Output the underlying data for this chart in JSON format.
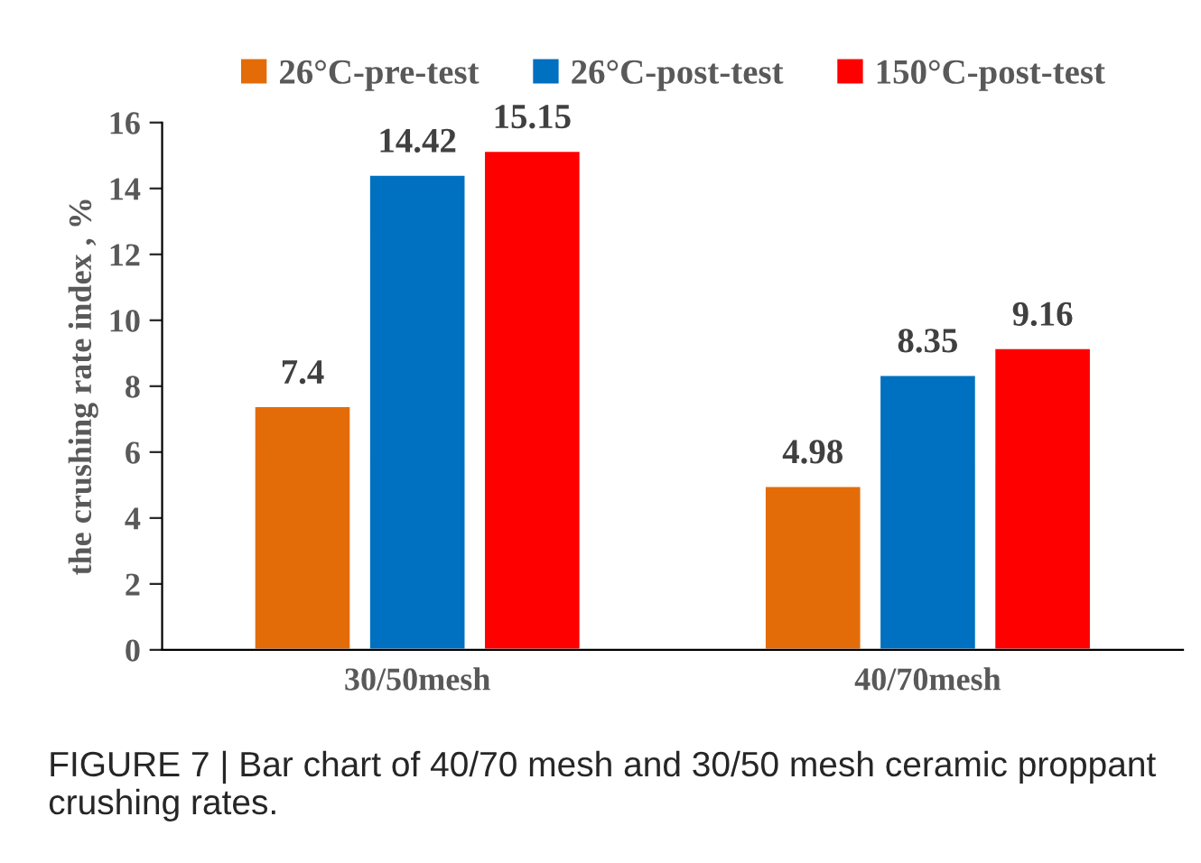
{
  "chart_data": {
    "type": "bar",
    "categories": [
      "30/50mesh",
      "40/70mesh"
    ],
    "series": [
      {
        "name": "26°C-pre-test",
        "color": "#e36c09",
        "values": [
          7.4,
          4.98
        ]
      },
      {
        "name": "26°C-post-test",
        "color": "#0070c0",
        "values": [
          14.42,
          8.35
        ]
      },
      {
        "name": "150°C-post-test",
        "color": "#ff0000",
        "values": [
          15.15,
          9.16
        ]
      }
    ],
    "ylabel": "the crushing rate index , %",
    "ylim": [
      0,
      16
    ],
    "yticks": [
      0,
      2,
      4,
      6,
      8,
      10,
      12,
      14,
      16
    ],
    "data_labels": true,
    "grid": false,
    "legend": "top",
    "annotations": [
      "FIGURE 7 | Bar chart of 40/70 mesh and 30/50 mesh ceramic proppant crushing rates."
    ]
  }
}
